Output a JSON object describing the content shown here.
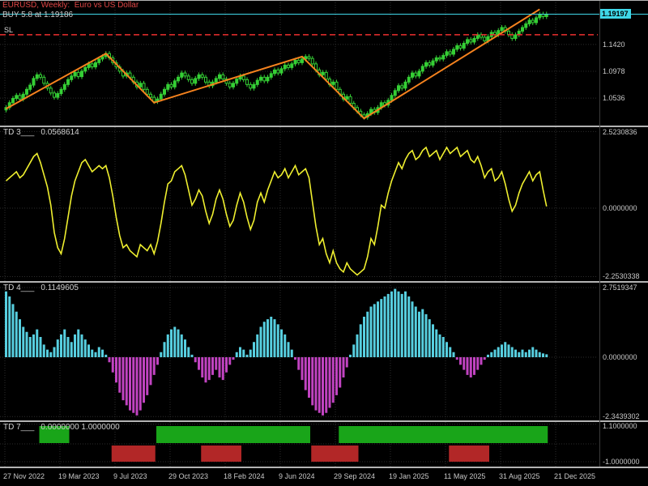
{
  "header": {
    "symbol_line": "EURUSD, Weekly:  Euro vs US Dollar",
    "order_line": "BUY 5.8 at 1.19186",
    "sl_label": "SL"
  },
  "price_badge": "1.19197",
  "panels": {
    "main": {
      "scale": [
        "1.1420",
        "1.0978",
        "1.0536"
      ]
    },
    "td3": {
      "label": "TD 3___",
      "value": "0.0568614",
      "scale": [
        "2.5230836",
        "0.0000000",
        "-2.2530338"
      ]
    },
    "td4": {
      "label": "TD 4___",
      "value": "0.1149605",
      "scale": [
        "2.7519347",
        "0.0000000",
        "-2.3439302"
      ]
    },
    "td7": {
      "label": "TD 7___",
      "value": "0.0000000 1.0000000",
      "scale": [
        "1.1000000",
        "-1.0000000"
      ]
    }
  },
  "time_axis": [
    "27 Nov 2022",
    "19 Mar 2023",
    "9 Jul 2023",
    "29 Oct 2023",
    "18 Feb 2024",
    "9 Jun 2024",
    "29 Sep 2024",
    "19 Jan 2025",
    "11 May 2025",
    "31 Aug 2025",
    "21 Dec 2025"
  ],
  "colors": {
    "candle": "#35cf35",
    "zigzag": "#f5821e",
    "stop_line": "#ee2f2f",
    "price_line": "#3fd7e8",
    "badge_bg": "#3fd7e8",
    "td3_line": "#efef2f",
    "td4_pos": "#57cfe0",
    "td4_neg": "#c143c1",
    "td7_up": "#19a519",
    "td7_down": "#b22727",
    "grid": "#2d2d2d"
  },
  "chart_data": [
    {
      "type": "candlestick",
      "name": "EURUSD weekly price",
      "open_start": 1.034,
      "wick": 0.004,
      "ylim": [
        1.015,
        1.21
      ],
      "scale_levels": [
        1.142,
        1.0978,
        1.0536
      ],
      "closes": [
        1.038,
        1.046,
        1.053,
        1.058,
        1.052,
        1.06,
        1.068,
        1.075,
        1.086,
        1.092,
        1.088,
        1.078,
        1.07,
        1.062,
        1.055,
        1.061,
        1.068,
        1.076,
        1.084,
        1.09,
        1.096,
        1.089,
        1.098,
        1.104,
        1.11,
        1.105,
        1.112,
        1.118,
        1.122,
        1.127,
        1.12,
        1.112,
        1.105,
        1.098,
        1.09,
        1.095,
        1.088,
        1.08,
        1.072,
        1.078,
        1.068,
        1.06,
        1.055,
        1.048,
        1.052,
        1.06,
        1.068,
        1.076,
        1.072,
        1.082,
        1.088,
        1.095,
        1.09,
        1.084,
        1.078,
        1.086,
        1.092,
        1.088,
        1.08,
        1.074,
        1.08,
        1.086,
        1.092,
        1.085,
        1.078,
        1.072,
        1.078,
        1.085,
        1.09,
        1.084,
        1.076,
        1.07,
        1.076,
        1.083,
        1.088,
        1.082,
        1.088,
        1.094,
        1.1,
        1.095,
        1.102,
        1.108,
        1.104,
        1.11,
        1.116,
        1.112,
        1.118,
        1.122,
        1.119,
        1.11,
        1.1,
        1.092,
        1.096,
        1.085,
        1.076,
        1.08,
        1.068,
        1.06,
        1.052,
        1.056,
        1.045,
        1.038,
        1.032,
        1.026,
        1.022,
        1.028,
        1.035,
        1.03,
        1.038,
        1.046,
        1.042,
        1.05,
        1.058,
        1.066,
        1.074,
        1.07,
        1.08,
        1.088,
        1.095,
        1.09,
        1.098,
        1.106,
        1.112,
        1.108,
        1.115,
        1.12,
        1.118,
        1.124,
        1.13,
        1.126,
        1.134,
        1.14,
        1.136,
        1.144,
        1.15,
        1.146,
        1.152,
        1.158,
        1.154,
        1.148,
        1.155,
        1.162,
        1.158,
        1.165,
        1.17,
        1.164,
        1.158,
        1.152,
        1.158,
        1.164,
        1.17,
        1.176,
        1.182,
        1.178,
        1.186,
        1.192,
        1.188,
        1.192
      ],
      "zigzag": [
        [
          0,
          1.036
        ],
        [
          29,
          1.127
        ],
        [
          43,
          1.046
        ],
        [
          86,
          1.122
        ],
        [
          104,
          1.02
        ],
        [
          155,
          1.2
        ]
      ],
      "sl_price": 1.158,
      "current_price": 1.19197
    },
    {
      "type": "line",
      "name": "TD 3",
      "last_value": 0.0568614,
      "levels": [
        2.5230836,
        0,
        -2.2530338
      ],
      "values": [
        0.9,
        1.0,
        1.1,
        1.2,
        1.0,
        1.1,
        1.3,
        1.5,
        1.7,
        1.8,
        1.5,
        1.1,
        0.7,
        0.1,
        -0.8,
        -1.3,
        -1.5,
        -1.0,
        -0.3,
        0.4,
        0.9,
        1.2,
        1.5,
        1.6,
        1.4,
        1.2,
        1.3,
        1.4,
        1.3,
        1.4,
        1.0,
        0.4,
        -0.3,
        -0.9,
        -1.3,
        -1.2,
        -1.4,
        -1.5,
        -1.6,
        -1.2,
        -1.3,
        -1.4,
        -1.2,
        -1.5,
        -1.1,
        -0.5,
        0.2,
        0.8,
        0.9,
        1.2,
        1.3,
        1.4,
        1.1,
        0.6,
        0.1,
        0.3,
        0.6,
        0.4,
        -0.1,
        -0.5,
        -0.2,
        0.3,
        0.6,
        0.3,
        -0.2,
        -0.6,
        -0.4,
        0.1,
        0.5,
        0.2,
        -0.3,
        -0.7,
        -0.4,
        0.2,
        0.5,
        0.2,
        0.6,
        0.9,
        1.2,
        1.0,
        1.1,
        1.3,
        1.0,
        1.2,
        1.4,
        1.1,
        1.2,
        1.3,
        1.0,
        0.2,
        -0.6,
        -1.2,
        -1.0,
        -1.5,
        -1.8,
        -1.4,
        -1.8,
        -2.0,
        -2.1,
        -1.8,
        -2.0,
        -2.1,
        -2.2,
        -2.1,
        -2.0,
        -1.6,
        -1.0,
        -1.2,
        -0.6,
        0.1,
        0.0,
        0.5,
        0.9,
        1.2,
        1.5,
        1.3,
        1.6,
        1.8,
        1.9,
        1.6,
        1.7,
        1.9,
        2.0,
        1.7,
        1.8,
        1.9,
        1.6,
        1.8,
        2.0,
        1.8,
        1.9,
        2.0,
        1.7,
        1.8,
        1.9,
        1.6,
        1.5,
        1.7,
        1.4,
        1.0,
        1.2,
        1.3,
        0.9,
        1.0,
        1.2,
        0.8,
        0.3,
        -0.1,
        0.1,
        0.5,
        0.8,
        1.0,
        1.2,
        0.9,
        1.1,
        1.2,
        0.6,
        0.06
      ]
    },
    {
      "type": "bar",
      "name": "TD 4",
      "last_value": 0.1149605,
      "levels": [
        2.7519347,
        0,
        -2.3439302
      ],
      "values": [
        2.6,
        2.4,
        2.1,
        1.8,
        1.5,
        1.2,
        1.0,
        0.8,
        0.9,
        1.1,
        0.8,
        0.5,
        0.3,
        0.2,
        0.4,
        0.7,
        0.9,
        1.1,
        0.8,
        0.6,
        0.9,
        1.1,
        0.9,
        0.7,
        0.5,
        0.3,
        0.2,
        0.4,
        0.3,
        0.1,
        -0.2,
        -0.6,
        -1.0,
        -1.4,
        -1.7,
        -1.9,
        -2.1,
        -2.2,
        -2.3,
        -2.1,
        -1.8,
        -1.5,
        -1.1,
        -0.7,
        -0.3,
        0.2,
        0.6,
        0.9,
        1.1,
        1.2,
        1.1,
        0.9,
        0.7,
        0.4,
        0.1,
        -0.2,
        -0.5,
        -0.8,
        -1.0,
        -0.9,
        -0.7,
        -0.5,
        -0.8,
        -0.9,
        -0.6,
        -0.3,
        -0.1,
        0.2,
        0.4,
        0.3,
        0.1,
        0.3,
        0.6,
        0.9,
        1.2,
        1.4,
        1.5,
        1.6,
        1.5,
        1.3,
        1.1,
        0.9,
        0.6,
        0.3,
        -0.1,
        -0.5,
        -0.9,
        -1.3,
        -1.6,
        -1.9,
        -2.1,
        -2.2,
        -2.3,
        -2.2,
        -2.0,
        -1.8,
        -1.5,
        -1.2,
        -0.8,
        -0.4,
        0.1,
        0.5,
        0.9,
        1.3,
        1.6,
        1.8,
        2.0,
        2.1,
        2.2,
        2.3,
        2.4,
        2.5,
        2.6,
        2.7,
        2.6,
        2.5,
        2.6,
        2.4,
        2.2,
        2.0,
        1.8,
        1.9,
        1.7,
        1.5,
        1.3,
        1.1,
        0.9,
        0.8,
        0.6,
        0.4,
        0.2,
        -0.1,
        -0.3,
        -0.5,
        -0.7,
        -0.8,
        -0.7,
        -0.5,
        -0.3,
        -0.1,
        0.1,
        0.2,
        0.3,
        0.4,
        0.5,
        0.6,
        0.5,
        0.4,
        0.3,
        0.2,
        0.3,
        0.2,
        0.3,
        0.4,
        0.3,
        0.2,
        0.15,
        0.115
      ]
    },
    {
      "type": "blocks",
      "name": "TD 7",
      "levels": [
        1.1,
        0,
        -1.0
      ],
      "green_segments": [
        [
          10,
          18
        ],
        [
          44,
          88
        ],
        [
          97,
          157
        ]
      ],
      "red_segments": [
        [
          31,
          43
        ],
        [
          57,
          68
        ],
        [
          89,
          102
        ],
        [
          129,
          140
        ]
      ]
    }
  ]
}
